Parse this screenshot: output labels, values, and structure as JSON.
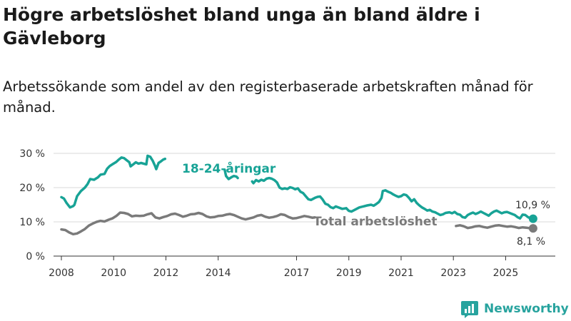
{
  "header": {
    "title": "Högre arbetslöshet bland unga än bland äldre i Gävleborg",
    "subtitle": "Arbetssökande som andel av den registerbaserade arbetskraften månad för månad."
  },
  "brand": {
    "name": "Newsworthy",
    "icon": "newsworthy-logo-icon"
  },
  "colors": {
    "youth": "#18a396",
    "total": "#7a7a7a",
    "grid": "#d9d9d9",
    "brand": "#27a39e"
  },
  "chart_data": {
    "type": "line",
    "title": "Högre arbetslöshet bland unga än bland äldre i Gävleborg",
    "xlabel": "",
    "ylabel": "",
    "xlim": [
      2007.7,
      2026.9
    ],
    "ylim": [
      0,
      30
    ],
    "grid": true,
    "y_ticks": [
      0,
      10,
      20,
      30
    ],
    "y_tick_labels": [
      "0 %",
      "10 %",
      "20 %",
      "30 %"
    ],
    "x_ticks": [
      2008,
      2010,
      2012,
      2014,
      2017,
      2019,
      2021,
      2023,
      2025
    ],
    "series": [
      {
        "name": "18-24-åringar",
        "label": "18-24-åringar",
        "end_label": "10,9 %",
        "end_value": 10.9,
        "segments": [
          [
            [
              2008.0,
              17.2
            ],
            [
              2008.1,
              16.8
            ],
            [
              2008.2,
              15.5
            ],
            [
              2008.33,
              14.2
            ],
            [
              2008.45,
              14.6
            ],
            [
              2008.5,
              15.0
            ],
            [
              2008.6,
              17.5
            ],
            [
              2008.75,
              19.0
            ],
            [
              2008.9,
              20.0
            ],
            [
              2009.0,
              21.0
            ],
            [
              2009.1,
              22.5
            ],
            [
              2009.25,
              22.3
            ],
            [
              2009.4,
              23.0
            ],
            [
              2009.5,
              23.8
            ],
            [
              2009.65,
              24.0
            ],
            [
              2009.75,
              25.5
            ],
            [
              2009.85,
              26.3
            ],
            [
              2009.95,
              26.8
            ],
            [
              2010.1,
              27.5
            ],
            [
              2010.2,
              28.2
            ],
            [
              2010.3,
              28.8
            ],
            [
              2010.4,
              28.6
            ],
            [
              2010.5,
              28.0
            ],
            [
              2010.6,
              27.4
            ],
            [
              2010.65,
              26.2
            ],
            [
              2010.75,
              26.8
            ],
            [
              2010.85,
              27.4
            ],
            [
              2010.95,
              27.0
            ],
            [
              2011.05,
              27.2
            ],
            [
              2011.15,
              27.0
            ],
            [
              2011.25,
              26.8
            ],
            [
              2011.3,
              29.3
            ],
            [
              2011.4,
              29.0
            ],
            [
              2011.5,
              27.8
            ],
            [
              2011.58,
              26.4
            ],
            [
              2011.63,
              25.4
            ],
            [
              2011.72,
              27.2
            ],
            [
              2011.8,
              27.6
            ],
            [
              2011.9,
              28.2
            ],
            [
              2011.97,
              28.4
            ]
          ],
          [
            [
              2014.25,
              25.2
            ],
            [
              2014.3,
              23.4
            ],
            [
              2014.4,
              22.5
            ],
            [
              2014.5,
              23.0
            ],
            [
              2014.6,
              23.4
            ],
            [
              2014.7,
              23.2
            ],
            [
              2014.75,
              22.8
            ]
          ],
          [
            [
              2015.3,
              21.8
            ],
            [
              2015.35,
              21.3
            ],
            [
              2015.45,
              22.2
            ],
            [
              2015.55,
              21.8
            ],
            [
              2015.65,
              22.3
            ],
            [
              2015.75,
              22.0
            ],
            [
              2015.85,
              22.6
            ],
            [
              2015.95,
              22.8
            ],
            [
              2016.05,
              22.6
            ],
            [
              2016.15,
              22.2
            ],
            [
              2016.25,
              21.5
            ],
            [
              2016.35,
              20.0
            ],
            [
              2016.45,
              19.6
            ],
            [
              2016.55,
              19.8
            ],
            [
              2016.65,
              19.6
            ],
            [
              2016.75,
              20.1
            ],
            [
              2016.85,
              19.9
            ],
            [
              2016.95,
              19.5
            ],
            [
              2017.05,
              19.8
            ],
            [
              2017.15,
              18.8
            ],
            [
              2017.25,
              18.4
            ],
            [
              2017.35,
              17.5
            ],
            [
              2017.45,
              16.6
            ],
            [
              2017.55,
              16.4
            ],
            [
              2017.7,
              17.0
            ],
            [
              2017.8,
              17.3
            ],
            [
              2017.9,
              17.4
            ],
            [
              2018.0,
              16.5
            ],
            [
              2018.1,
              15.3
            ],
            [
              2018.2,
              15.0
            ],
            [
              2018.3,
              14.3
            ],
            [
              2018.4,
              14.0
            ],
            [
              2018.5,
              14.5
            ],
            [
              2018.6,
              14.2
            ],
            [
              2018.75,
              13.8
            ],
            [
              2018.9,
              14.0
            ],
            [
              2019.0,
              13.2
            ],
            [
              2019.1,
              13.0
            ],
            [
              2019.25,
              13.6
            ],
            [
              2019.4,
              14.2
            ],
            [
              2019.55,
              14.5
            ],
            [
              2019.7,
              14.8
            ],
            [
              2019.85,
              15.0
            ],
            [
              2019.95,
              14.7
            ],
            [
              2020.05,
              15.2
            ],
            [
              2020.15,
              15.8
            ],
            [
              2020.25,
              17.0
            ],
            [
              2020.3,
              19.0
            ],
            [
              2020.4,
              19.2
            ],
            [
              2020.5,
              18.8
            ],
            [
              2020.6,
              18.5
            ],
            [
              2020.7,
              18.0
            ],
            [
              2020.8,
              17.6
            ],
            [
              2020.9,
              17.3
            ],
            [
              2021.0,
              17.5
            ],
            [
              2021.1,
              18.0
            ],
            [
              2021.2,
              17.8
            ],
            [
              2021.3,
              17.0
            ],
            [
              2021.4,
              16.0
            ],
            [
              2021.5,
              16.6
            ],
            [
              2021.6,
              15.5
            ],
            [
              2021.7,
              14.8
            ],
            [
              2021.8,
              14.2
            ],
            [
              2021.9,
              13.8
            ],
            [
              2022.0,
              13.3
            ],
            [
              2022.1,
              13.5
            ],
            [
              2022.2,
              13.0
            ],
            [
              2022.3,
              12.8
            ],
            [
              2022.4,
              12.4
            ],
            [
              2022.5,
              12.0
            ],
            [
              2022.6,
              12.2
            ],
            [
              2022.7,
              12.6
            ],
            [
              2022.85,
              12.8
            ],
            [
              2022.95,
              12.5
            ],
            [
              2023.05,
              12.9
            ],
            [
              2023.15,
              12.3
            ],
            [
              2023.25,
              12.1
            ],
            [
              2023.35,
              11.4
            ],
            [
              2023.45,
              11.2
            ],
            [
              2023.55,
              12.0
            ],
            [
              2023.65,
              12.4
            ],
            [
              2023.75,
              12.7
            ],
            [
              2023.85,
              12.3
            ],
            [
              2023.95,
              12.6
            ],
            [
              2024.05,
              13.0
            ],
            [
              2024.15,
              12.6
            ],
            [
              2024.25,
              12.2
            ],
            [
              2024.35,
              11.8
            ],
            [
              2024.45,
              12.5
            ],
            [
              2024.55,
              13.0
            ],
            [
              2024.65,
              13.3
            ],
            [
              2024.75,
              12.9
            ],
            [
              2024.85,
              12.5
            ],
            [
              2024.95,
              12.8
            ],
            [
              2025.05,
              12.9
            ],
            [
              2025.15,
              12.6
            ],
            [
              2025.25,
              12.3
            ],
            [
              2025.35,
              12.0
            ],
            [
              2025.45,
              11.4
            ],
            [
              2025.55,
              11.0
            ],
            [
              2025.65,
              12.1
            ],
            [
              2025.75,
              12.0
            ],
            [
              2025.85,
              11.4
            ],
            [
              2025.95,
              11.0
            ],
            [
              2026.05,
              10.9
            ]
          ]
        ]
      },
      {
        "name": "Total arbetslöshet",
        "label": "Total arbetslöshet",
        "end_label": "8,1 %",
        "end_value": 8.1,
        "segments": [
          [
            [
              2008.0,
              7.8
            ],
            [
              2008.15,
              7.6
            ],
            [
              2008.3,
              6.9
            ],
            [
              2008.45,
              6.4
            ],
            [
              2008.6,
              6.6
            ],
            [
              2008.75,
              7.2
            ],
            [
              2008.9,
              7.9
            ],
            [
              2009.05,
              8.9
            ],
            [
              2009.2,
              9.5
            ],
            [
              2009.35,
              10.0
            ],
            [
              2009.5,
              10.3
            ],
            [
              2009.65,
              10.1
            ],
            [
              2009.8,
              10.6
            ],
            [
              2009.95,
              11.0
            ],
            [
              2010.1,
              11.7
            ],
            [
              2010.25,
              12.7
            ],
            [
              2010.4,
              12.6
            ],
            [
              2010.55,
              12.3
            ],
            [
              2010.7,
              11.6
            ],
            [
              2010.85,
              11.8
            ],
            [
              2011.0,
              11.7
            ],
            [
              2011.15,
              11.8
            ],
            [
              2011.3,
              12.2
            ],
            [
              2011.45,
              12.5
            ],
            [
              2011.6,
              11.3
            ],
            [
              2011.75,
              11.0
            ],
            [
              2011.9,
              11.4
            ],
            [
              2012.05,
              11.7
            ],
            [
              2012.2,
              12.2
            ],
            [
              2012.35,
              12.4
            ],
            [
              2012.5,
              12.0
            ],
            [
              2012.65,
              11.5
            ],
            [
              2012.8,
              11.8
            ],
            [
              2012.95,
              12.2
            ],
            [
              2013.1,
              12.3
            ],
            [
              2013.25,
              12.6
            ],
            [
              2013.4,
              12.3
            ],
            [
              2013.55,
              11.6
            ],
            [
              2013.7,
              11.3
            ],
            [
              2013.85,
              11.4
            ],
            [
              2014.0,
              11.7
            ],
            [
              2014.15,
              11.8
            ],
            [
              2014.3,
              12.1
            ],
            [
              2014.45,
              12.3
            ],
            [
              2014.6,
              12.0
            ],
            [
              2014.75,
              11.5
            ],
            [
              2014.9,
              11.0
            ],
            [
              2015.05,
              10.7
            ],
            [
              2015.2,
              11.0
            ],
            [
              2015.35,
              11.3
            ],
            [
              2015.5,
              11.8
            ],
            [
              2015.65,
              12.0
            ],
            [
              2015.8,
              11.5
            ],
            [
              2015.95,
              11.2
            ],
            [
              2016.1,
              11.4
            ],
            [
              2016.25,
              11.7
            ],
            [
              2016.4,
              12.2
            ],
            [
              2016.55,
              12.0
            ],
            [
              2016.7,
              11.4
            ],
            [
              2016.85,
              11.0
            ],
            [
              2017.0,
              11.1
            ],
            [
              2017.15,
              11.4
            ],
            [
              2017.3,
              11.7
            ],
            [
              2017.45,
              11.5
            ],
            [
              2017.6,
              11.2
            ],
            [
              2017.7,
              11.3
            ]
          ],
          [
            [
              2023.1,
              8.8
            ],
            [
              2023.25,
              9.0
            ],
            [
              2023.4,
              8.7
            ],
            [
              2023.55,
              8.2
            ],
            [
              2023.7,
              8.4
            ],
            [
              2023.85,
              8.7
            ],
            [
              2024.0,
              8.8
            ],
            [
              2024.15,
              8.5
            ],
            [
              2024.3,
              8.3
            ],
            [
              2024.45,
              8.6
            ],
            [
              2024.6,
              8.9
            ],
            [
              2024.75,
              9.0
            ],
            [
              2024.9,
              8.8
            ],
            [
              2025.05,
              8.6
            ],
            [
              2025.2,
              8.7
            ],
            [
              2025.35,
              8.5
            ],
            [
              2025.5,
              8.2
            ],
            [
              2025.65,
              8.4
            ],
            [
              2025.8,
              8.3
            ],
            [
              2025.95,
              8.1
            ],
            [
              2026.05,
              8.1
            ]
          ]
        ]
      }
    ]
  }
}
